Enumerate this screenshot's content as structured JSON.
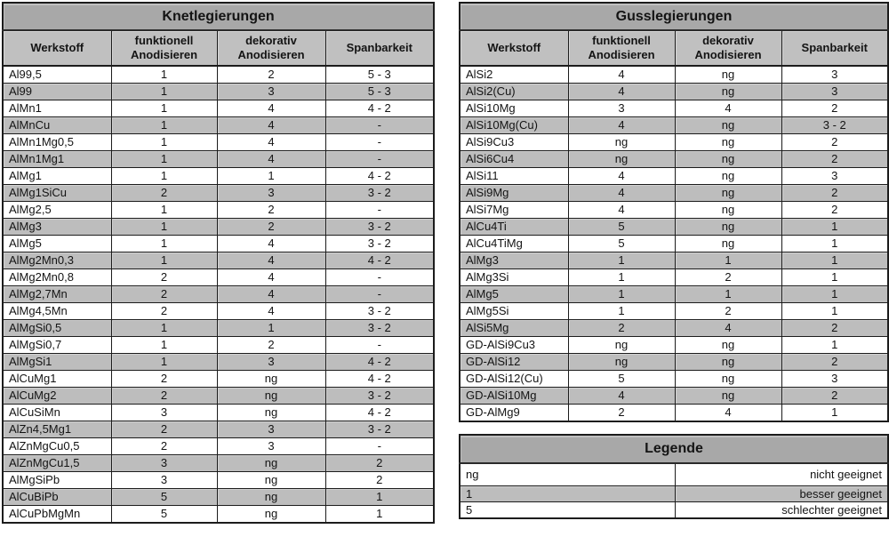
{
  "colors": {
    "title_band": "#a8a8a8",
    "header_band": "#c0c0c0",
    "row_alt": "#bdbdbd",
    "row_base": "#ffffff",
    "border": "#1c1c1c"
  },
  "knet_table": {
    "title": "Knetlegierungen",
    "headers": [
      {
        "line1": "Werkstoff",
        "line2": ""
      },
      {
        "line1": "funktionell",
        "line2": "Anodisieren"
      },
      {
        "line1": "dekorativ",
        "line2": "Anodisieren"
      },
      {
        "line1": "Spanbarkeit",
        "line2": ""
      }
    ],
    "rows": [
      [
        "Al99,5",
        "1",
        "2",
        "5 - 3"
      ],
      [
        "Al99",
        "1",
        "3",
        "5 - 3"
      ],
      [
        "AlMn1",
        "1",
        "4",
        "4 - 2"
      ],
      [
        "AlMnCu",
        "1",
        "4",
        "-"
      ],
      [
        "AlMn1Mg0,5",
        "1",
        "4",
        "-"
      ],
      [
        "AlMn1Mg1",
        "1",
        "4",
        "-"
      ],
      [
        "AlMg1",
        "1",
        "1",
        "4 - 2"
      ],
      [
        "AlMg1SiCu",
        "2",
        "3",
        "3 - 2"
      ],
      [
        "AlMg2,5",
        "1",
        "2",
        "-"
      ],
      [
        "AlMg3",
        "1",
        "2",
        "3 - 2"
      ],
      [
        "AlMg5",
        "1",
        "4",
        "3 - 2"
      ],
      [
        "AlMg2Mn0,3",
        "1",
        "4",
        "4 - 2"
      ],
      [
        "AlMg2Mn0,8",
        "2",
        "4",
        "-"
      ],
      [
        "AlMg2,7Mn",
        "2",
        "4",
        "-"
      ],
      [
        "AlMg4,5Mn",
        "2",
        "4",
        "3 - 2"
      ],
      [
        "AlMgSi0,5",
        "1",
        "1",
        "3 - 2"
      ],
      [
        "AlMgSi0,7",
        "1",
        "2",
        "-"
      ],
      [
        "AlMgSi1",
        "1",
        "3",
        "4 - 2"
      ],
      [
        "AlCuMg1",
        "2",
        "ng",
        "4 - 2"
      ],
      [
        "AlCuMg2",
        "2",
        "ng",
        "3 - 2"
      ],
      [
        "AlCuSiMn",
        "3",
        "ng",
        "4 - 2"
      ],
      [
        "AlZn4,5Mg1",
        "2",
        "3",
        "3 - 2"
      ],
      [
        "AlZnMgCu0,5",
        "2",
        "3",
        "-"
      ],
      [
        "AlZnMgCu1,5",
        "3",
        "ng",
        "2"
      ],
      [
        "AlMgSiPb",
        "3",
        "ng",
        "2"
      ],
      [
        "AlCuBiPb",
        "5",
        "ng",
        "1"
      ],
      [
        "AlCuPbMgMn",
        "5",
        "ng",
        "1"
      ]
    ]
  },
  "guss_table": {
    "title": "Gusslegierungen",
    "headers": [
      {
        "line1": "Werkstoff",
        "line2": ""
      },
      {
        "line1": "funktionell",
        "line2": "Anodisieren"
      },
      {
        "line1": "dekorativ",
        "line2": "Anodisieren"
      },
      {
        "line1": "Spanbarkeit",
        "line2": ""
      }
    ],
    "rows": [
      [
        "AlSi2",
        "4",
        "ng",
        "3"
      ],
      [
        "AlSi2(Cu)",
        "4",
        "ng",
        "3"
      ],
      [
        "AlSi10Mg",
        "3",
        "4",
        "2"
      ],
      [
        "AlSi10Mg(Cu)",
        "4",
        "ng",
        "3 - 2"
      ],
      [
        "AlSi9Cu3",
        "ng",
        "ng",
        "2"
      ],
      [
        "AlSi6Cu4",
        "ng",
        "ng",
        "2"
      ],
      [
        "AlSi11",
        "4",
        "ng",
        "3"
      ],
      [
        "AlSi9Mg",
        "4",
        "ng",
        "2"
      ],
      [
        "AlSi7Mg",
        "4",
        "ng",
        "2"
      ],
      [
        "AlCu4Ti",
        "5",
        "ng",
        "1"
      ],
      [
        "AlCu4TiMg",
        "5",
        "ng",
        "1"
      ],
      [
        "AlMg3",
        "1",
        "1",
        "1"
      ],
      [
        "AlMg3Si",
        "1",
        "2",
        "1"
      ],
      [
        "AlMg5",
        "1",
        "1",
        "1"
      ],
      [
        "AlMg5Si",
        "1",
        "2",
        "1"
      ],
      [
        "AlSi5Mg",
        "2",
        "4",
        "2"
      ],
      [
        "GD-AlSi9Cu3",
        "ng",
        "ng",
        "1"
      ],
      [
        "GD-AlSi12",
        "ng",
        "ng",
        "2"
      ],
      [
        "GD-AlSi12(Cu)",
        "5",
        "ng",
        "3"
      ],
      [
        "GD-AlSi10Mg",
        "4",
        "ng",
        "2"
      ],
      [
        "GD-AlMg9",
        "2",
        "4",
        "1"
      ]
    ]
  },
  "legend": {
    "title": "Legende",
    "rows": [
      [
        "ng",
        "nicht geeignet"
      ],
      [
        "1",
        "besser geeignet"
      ],
      [
        "5",
        "schlechter geeignet"
      ]
    ]
  }
}
